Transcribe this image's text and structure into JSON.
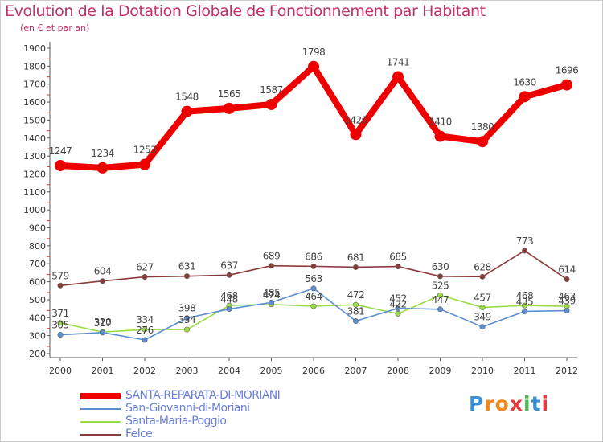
{
  "chart_data": {
    "type": "line",
    "title": "Evolution de la Dotation Globale de Fonctionnement par Habitant",
    "subtitle": "(en € et par an)",
    "xlabel": "",
    "ylabel": "",
    "categories": [
      "2000",
      "2001",
      "2002",
      "2003",
      "2004",
      "2005",
      "2006",
      "2007",
      "2008",
      "2009",
      "2010",
      "2011",
      "2012"
    ],
    "ylim": [
      200,
      1900
    ],
    "yticks": [
      200,
      300,
      400,
      500,
      600,
      700,
      800,
      900,
      1000,
      1100,
      1200,
      1300,
      1400,
      1500,
      1600,
      1700,
      1800,
      1900
    ],
    "grid": false,
    "legend_position": "bottom-left",
    "series": [
      {
        "name": "SANTA-REPARATA-DI-MORIANI",
        "color": "#ee0000",
        "values": [
          1247,
          1234,
          1253,
          1548,
          1565,
          1587,
          1798,
          1420,
          1741,
          1410,
          1380,
          1630,
          1696
        ],
        "labels": [
          "1247",
          "1234",
          "1253",
          "1548",
          "1565",
          "1587",
          "1798",
          "1420",
          "1741",
          "1410",
          "1380",
          "1630",
          "1696"
        ]
      },
      {
        "name": "San-Giovanni-di-Moriani",
        "color": "#5b8fd1",
        "values": [
          305,
          317,
          276,
          398,
          448,
          485,
          563,
          381,
          452,
          447,
          349,
          435,
          439
        ],
        "labels": [
          "305",
          "317",
          "276",
          "398",
          "448",
          "485",
          "563",
          "381",
          "452",
          "447",
          "349",
          "435",
          "439"
        ]
      },
      {
        "name": "Santa-Maria-Poggio",
        "color": "#99dd44",
        "values": [
          371,
          320,
          334,
          334,
          468,
          474,
          464,
          472,
          422,
          525,
          457,
          468,
          463
        ],
        "labels": [
          "371",
          "320",
          "334",
          "334",
          "468",
          "474",
          "464",
          "472",
          "422",
          "525",
          "457",
          "468",
          "463"
        ]
      },
      {
        "name": "Felce",
        "color": "#8b3a3a",
        "values": [
          579,
          604,
          627,
          631,
          637,
          689,
          686,
          681,
          685,
          630,
          628,
          773,
          614
        ],
        "labels": [
          "579",
          "604",
          "627",
          "631",
          "637",
          "689",
          "686",
          "681",
          "685",
          "630",
          "628",
          "773",
          "614"
        ]
      }
    ]
  },
  "logo": {
    "text": "Proxiti",
    "letters": [
      "P",
      "r",
      "o",
      "x",
      "i",
      "t",
      "i"
    ],
    "colors": [
      "#3a8fd6",
      "#f08a1e",
      "#f08a1e",
      "#e23b3b",
      "#4fb84f",
      "#3a8fd6",
      "#e23b3b"
    ]
  }
}
